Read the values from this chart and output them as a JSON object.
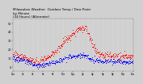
{
  "title": "Milwaukee Weather  Outdoor Temp / Dew Point",
  "subtitle": "by Minute\n(24 Hours) (Alternate)",
  "title_fontsize": 3.0,
  "background_color": "#d0d0d0",
  "plot_bg_color": "#d0d0d0",
  "temp_color": "#ff0000",
  "dew_color": "#0000ff",
  "ylim": [
    -5,
    55
  ],
  "yticks": [
    0,
    10,
    20,
    30,
    40,
    50
  ],
  "ytick_fontsize": 2.5,
  "xtick_fontsize": 2.0,
  "grid_color": "#ffffff",
  "marker_size": 0.5,
  "n_minutes": 1440,
  "seed": 99,
  "hours_per_tick": 2
}
